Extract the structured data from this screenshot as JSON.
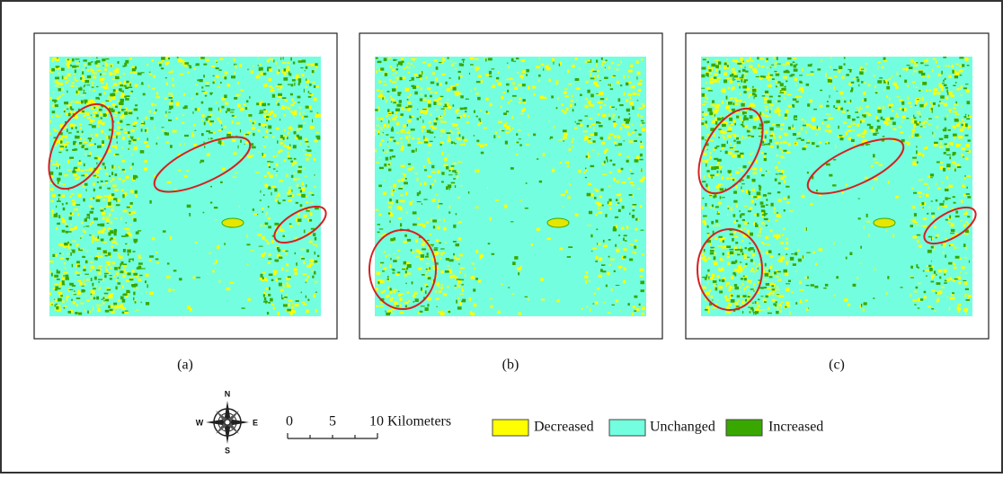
{
  "panels": [
    {
      "label": "(a)"
    },
    {
      "label": "(b)"
    },
    {
      "label": "(c)"
    }
  ],
  "compass": {
    "n": "N",
    "s": "S",
    "e": "E",
    "w": "W"
  },
  "scale_bar": {
    "labels": [
      "0",
      "5",
      "10 Kilometers"
    ]
  },
  "legend": {
    "items": [
      {
        "label": "Decreased"
      },
      {
        "label": "Unchanged"
      },
      {
        "label": "Increased"
      }
    ]
  }
}
